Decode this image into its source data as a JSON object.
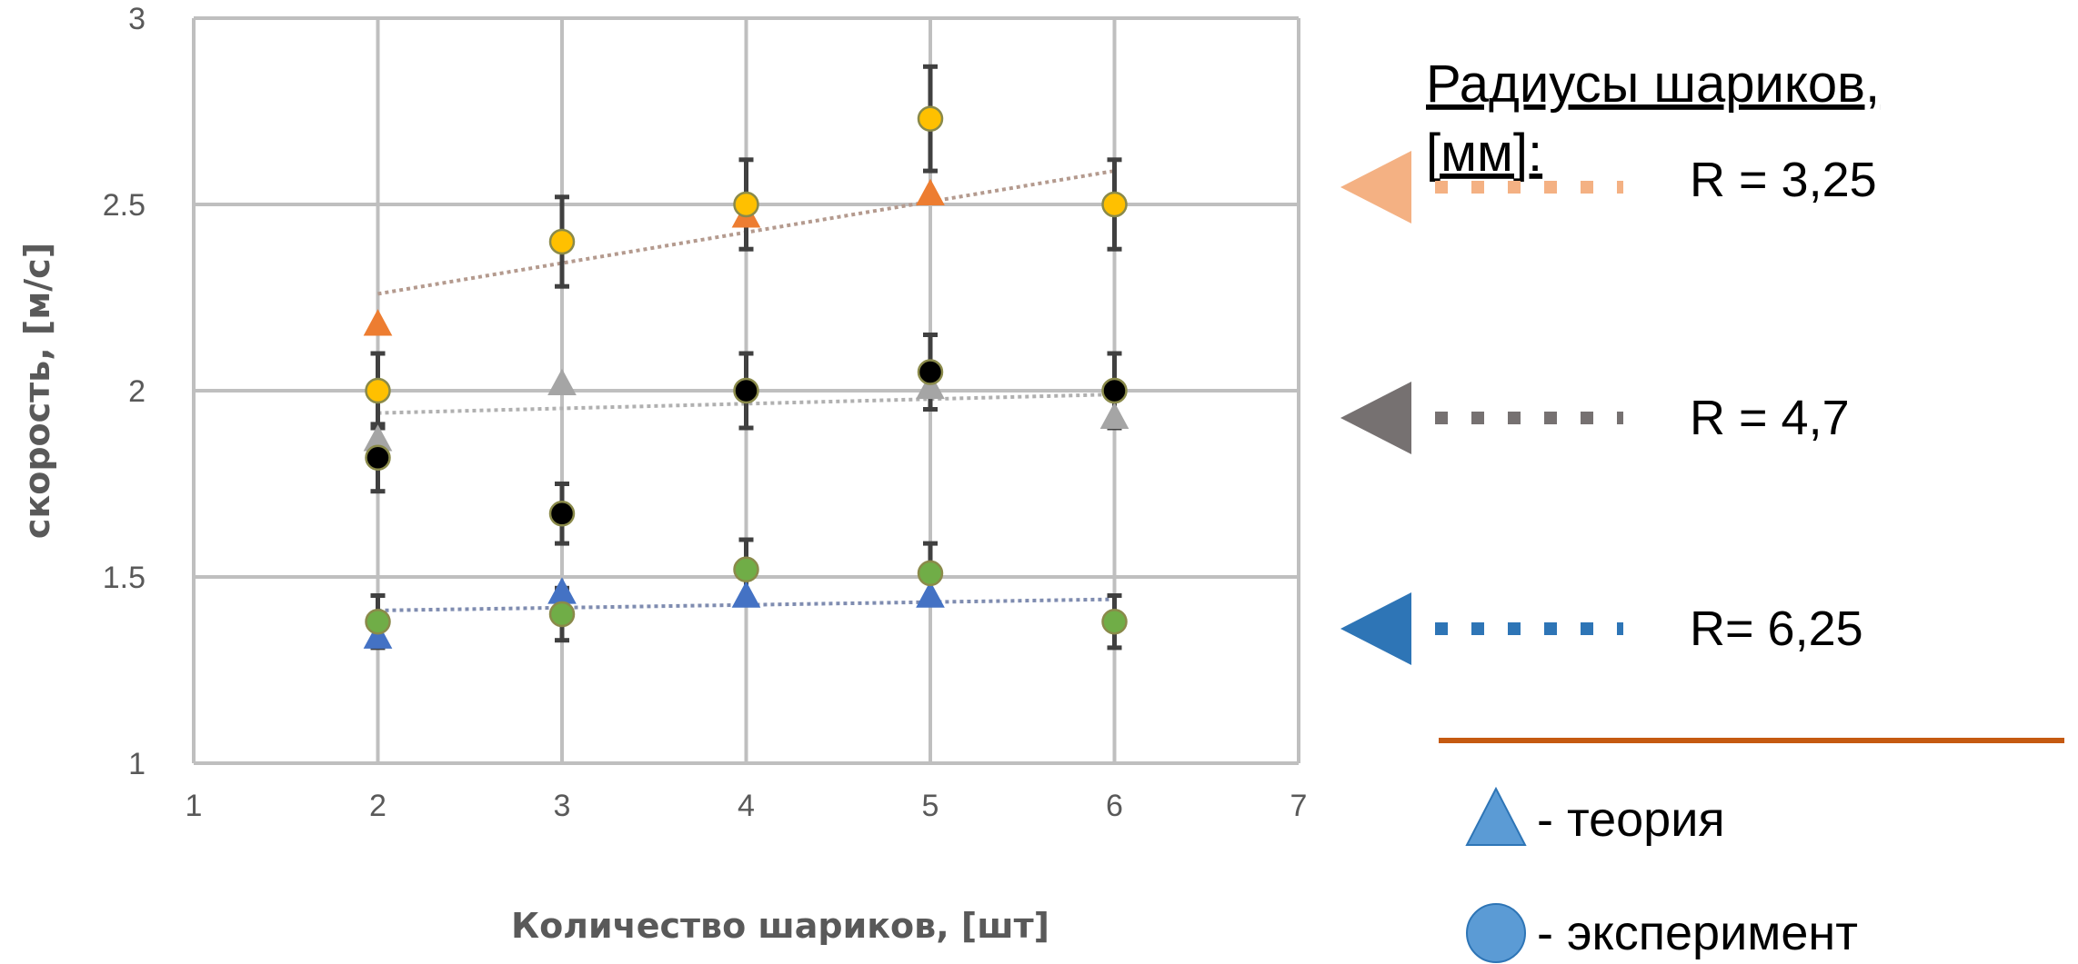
{
  "chart_data": {
    "type": "scatter",
    "xlabel": "Количество шариков, [шт]",
    "ylabel": "скорость, [м/с]",
    "xlim": [
      1,
      7
    ],
    "ylim": [
      1,
      3
    ],
    "x_ticks": [
      "1",
      "2",
      "3",
      "4",
      "5",
      "6",
      "7"
    ],
    "y_ticks": [
      "1",
      "1.5",
      "2",
      "2.5",
      "3"
    ],
    "grid": true,
    "groups": [
      {
        "radius_label": "R = 3,25",
        "theory_color": "#ED7D31",
        "experiment_color": "#FFC000",
        "trend_color": "#B49A8E",
        "legend_color": "#F4B183",
        "theory": {
          "x": [
            2,
            4,
            5
          ],
          "y": [
            2.18,
            2.47,
            2.53
          ]
        },
        "experiment": {
          "x": [
            2,
            3,
            4,
            5,
            6
          ],
          "y": [
            2.0,
            2.4,
            2.5,
            2.73,
            2.5
          ],
          "error": [
            0.1,
            0.12,
            0.12,
            0.14,
            0.12
          ]
        },
        "trend": {
          "x": [
            2,
            6
          ],
          "y": [
            2.26,
            2.59
          ]
        }
      },
      {
        "radius_label": "R = 4,7",
        "theory_color": "#A5A5A5",
        "experiment_color": "#000000",
        "trend_color": "#B0B0B0",
        "legend_color": "#767171",
        "theory": {
          "x": [
            2,
            3,
            5,
            6
          ],
          "y": [
            1.87,
            2.02,
            2.01,
            1.93
          ]
        },
        "experiment": {
          "x": [
            2,
            3,
            4,
            5,
            6
          ],
          "y": [
            1.82,
            1.67,
            2.0,
            2.05,
            2.0
          ],
          "error": [
            0.09,
            0.08,
            0.1,
            0.1,
            0.1
          ]
        },
        "trend": {
          "x": [
            2,
            6
          ],
          "y": [
            1.94,
            1.99
          ]
        }
      },
      {
        "radius_label": "R= 6,25",
        "theory_color": "#4472C4",
        "experiment_color": "#70AD47",
        "trend_color": "#7F8CB0",
        "legend_color": "#2E75B6",
        "theory": {
          "x": [
            2,
            3,
            4,
            5
          ],
          "y": [
            1.34,
            1.46,
            1.45,
            1.45
          ]
        },
        "experiment": {
          "x": [
            2,
            3,
            4,
            5,
            6
          ],
          "y": [
            1.38,
            1.4,
            1.52,
            1.51,
            1.38
          ],
          "error": [
            0.07,
            0.07,
            0.08,
            0.08,
            0.07
          ]
        },
        "trend": {
          "x": [
            2,
            6
          ],
          "y": [
            1.41,
            1.44
          ]
        }
      }
    ]
  },
  "legend": {
    "title_line1": "Радиусы шариков,",
    "title_line2": "[мм]:",
    "theory_label": "- теория",
    "experiment_label": "- эксперимент",
    "marker_color": "#5B9BD5",
    "marker_stroke": "#2E75B6",
    "divider_color": "#C55A11"
  }
}
